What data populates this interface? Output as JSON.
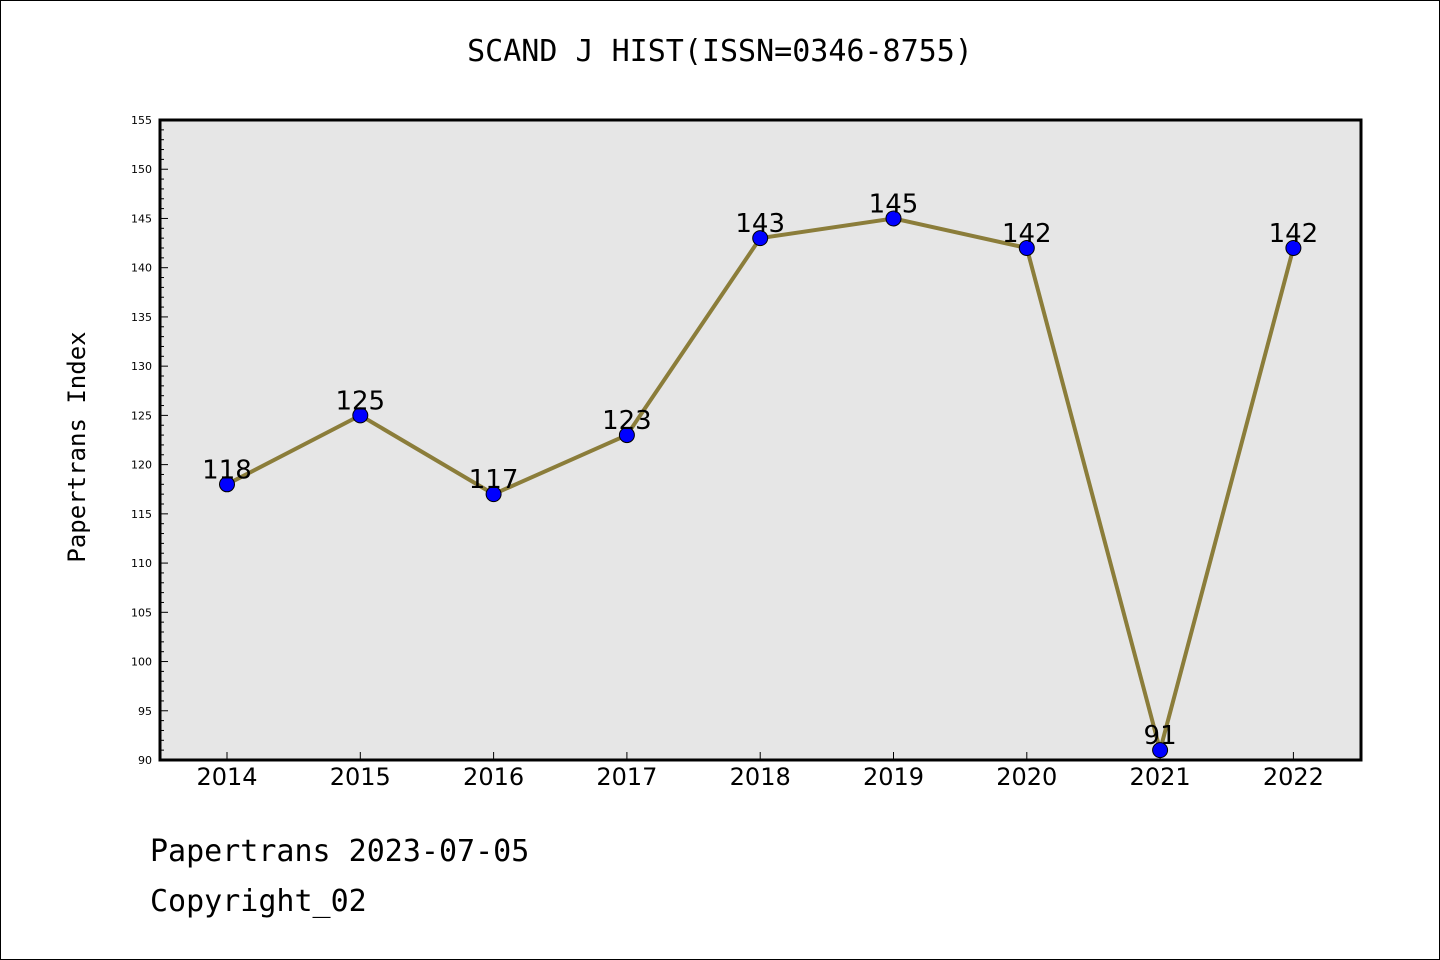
{
  "header": {
    "title": "SCAND J HIST(ISSN=0346-8755)"
  },
  "footer": {
    "line1": "Papertrans 2023-07-05",
    "line2": "Copyright_02"
  },
  "chart_data": {
    "type": "line",
    "title": "SCAND J HIST(ISSN=0346-8755)",
    "xlabel": "",
    "ylabel": "Papertrans Index",
    "categories": [
      "2014",
      "2015",
      "2016",
      "2017",
      "2018",
      "2019",
      "2020",
      "2021",
      "2022"
    ],
    "values": [
      118,
      125,
      117,
      123,
      143,
      145,
      142,
      91,
      142
    ],
    "ylim": [
      90,
      155
    ],
    "yticks": [
      90,
      95,
      100,
      105,
      110,
      115,
      120,
      125,
      130,
      135,
      140,
      145,
      150,
      155
    ],
    "data_labels": [
      "118",
      "125",
      "117",
      "123",
      "143",
      "145",
      "142",
      "91",
      "142"
    ],
    "grid": false,
    "legend": "none",
    "colors": {
      "line": "#8b7d3a",
      "marker": "#0000ff",
      "plot_bg": "#e6e6e6"
    }
  }
}
